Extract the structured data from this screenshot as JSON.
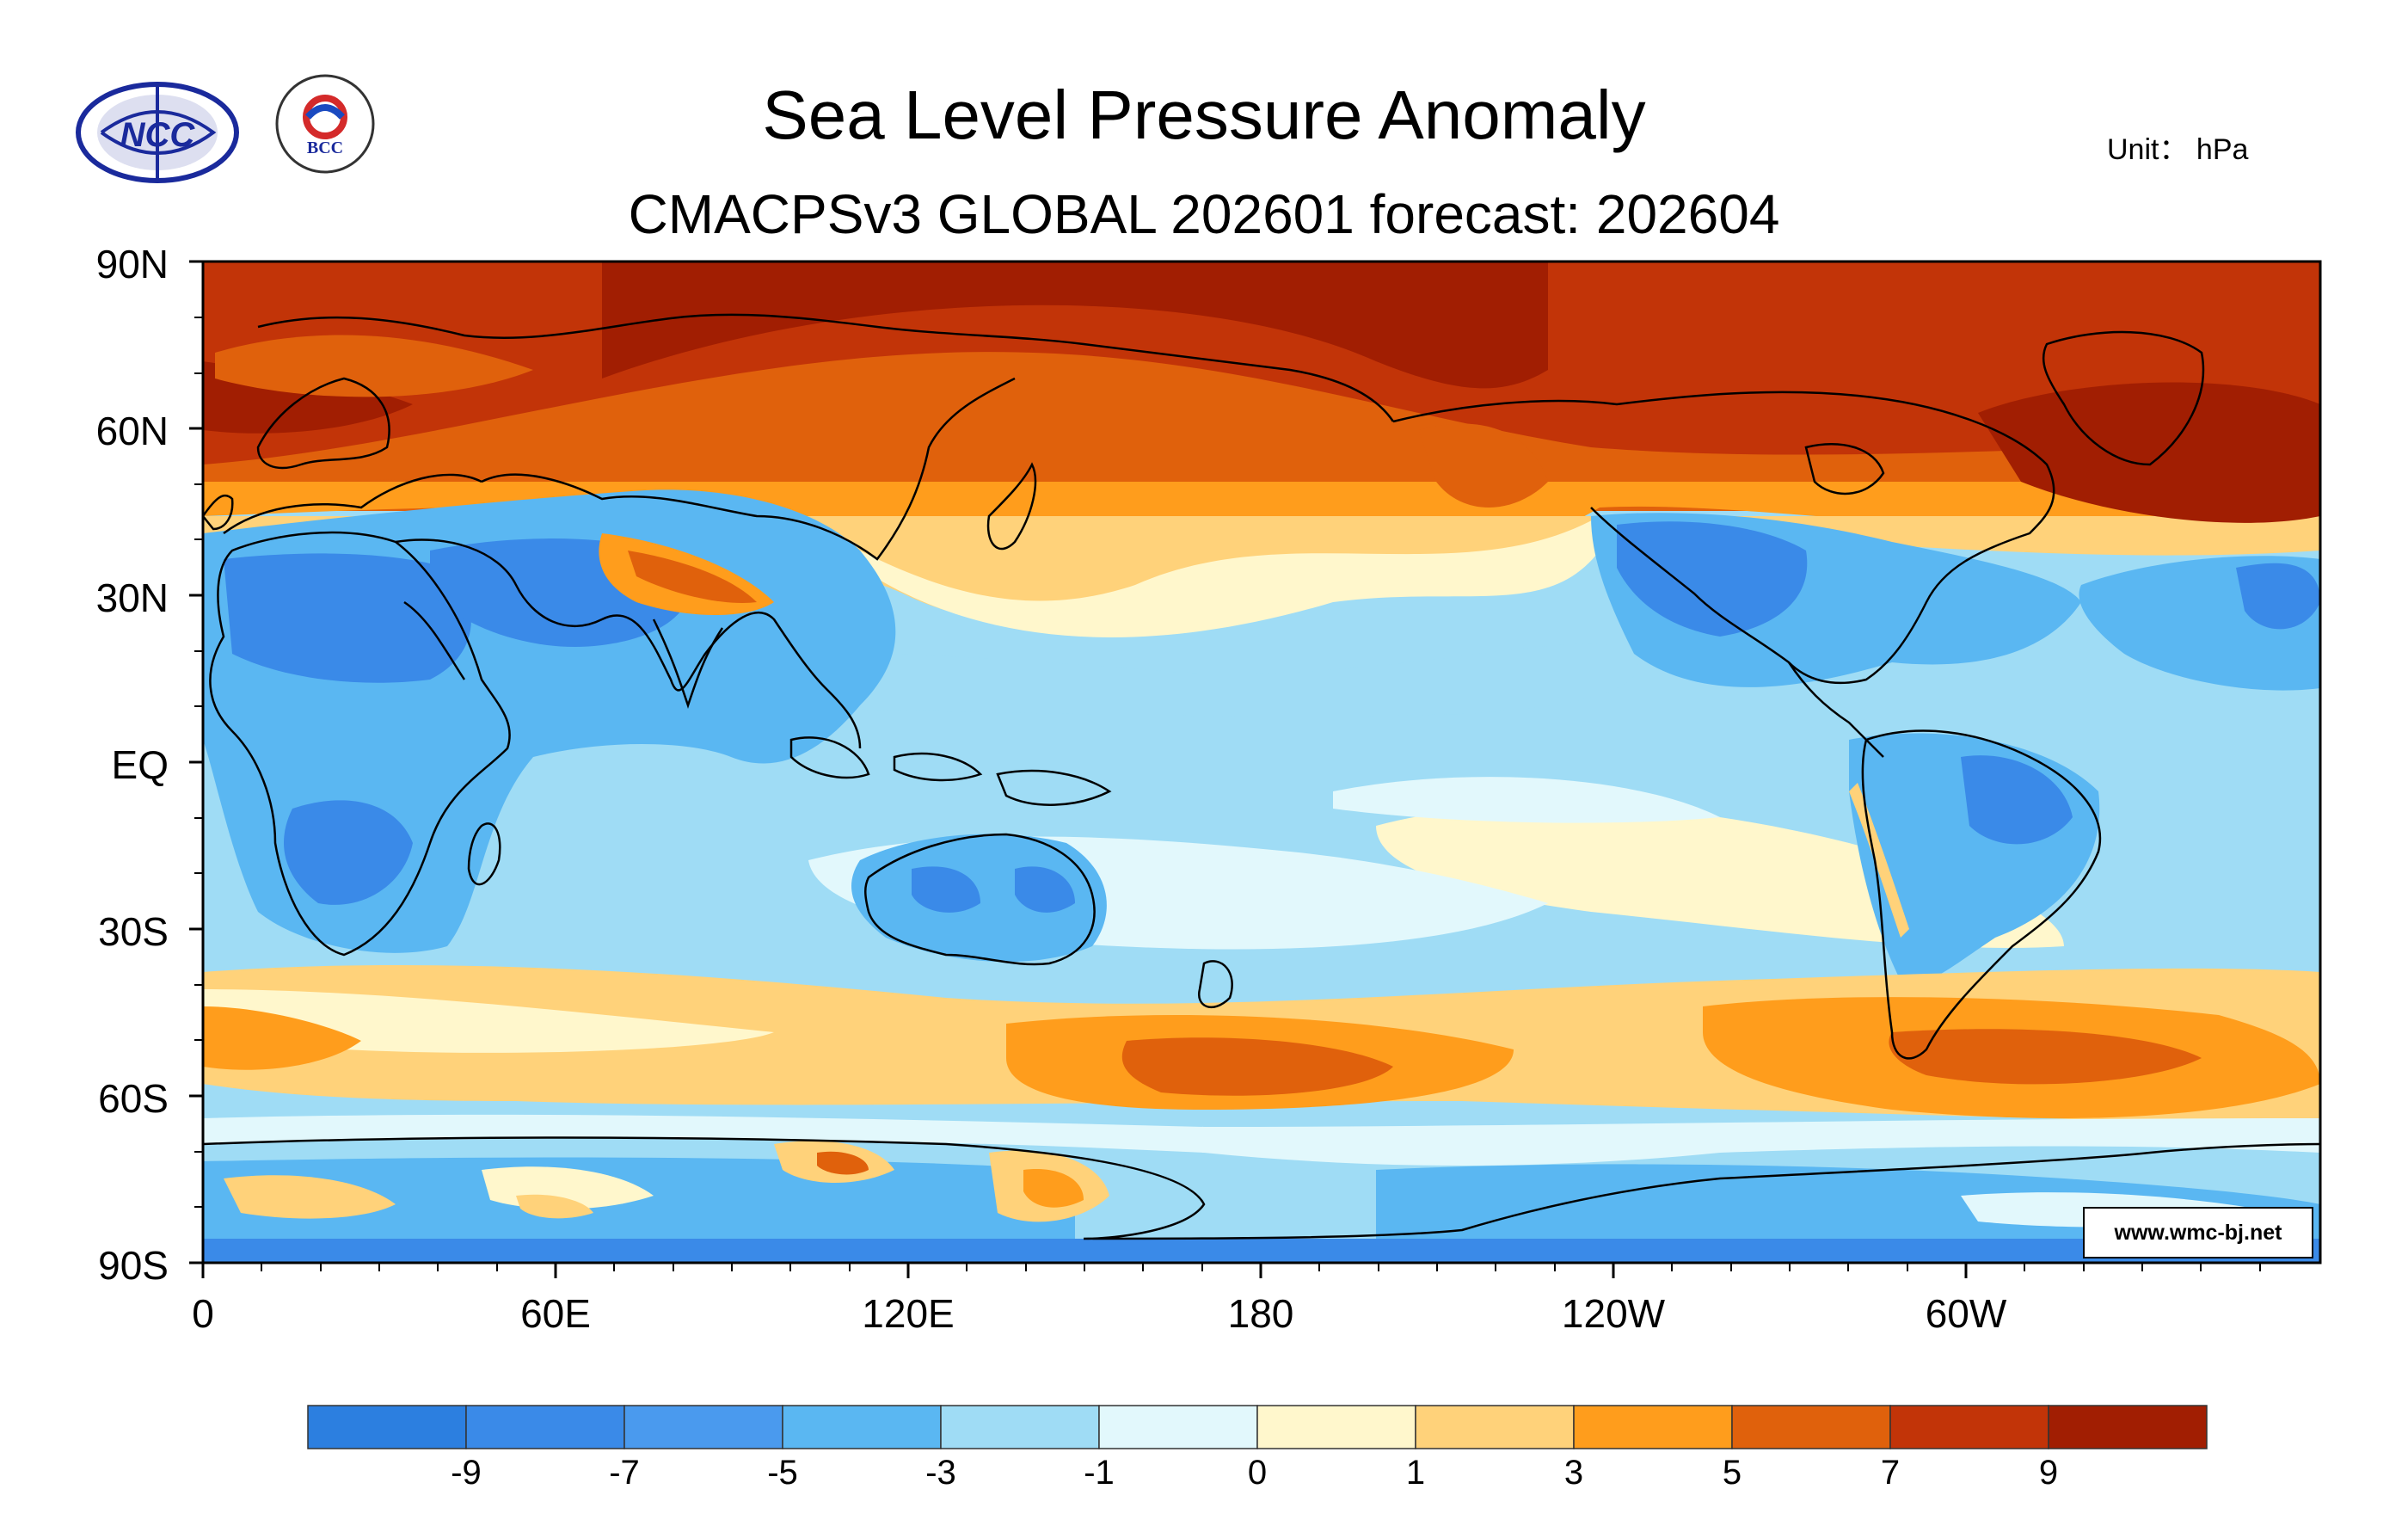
{
  "header": {
    "title": "Sea Level Pressure Anomaly",
    "subtitle": "CMACPSv3 GLOBAL 202601 forecast: 202604",
    "unit": "Unit： hPa"
  },
  "logos": [
    {
      "name": "ncc-logo",
      "text": "NCC"
    },
    {
      "name": "bcc-logo",
      "text": "BCC"
    }
  ],
  "map": {
    "lat_labels": [
      "90N",
      "60N",
      "30N",
      "EQ",
      "30S",
      "60S",
      "90S"
    ],
    "lon_labels": [
      "0",
      "60E",
      "120E",
      "180",
      "120W",
      "60W"
    ],
    "credit": "www.wmc-bj.net"
  },
  "legend": {
    "colors": [
      "#2c7fe0",
      "#3a8ae8",
      "#4a9aee",
      "#5ab7f2",
      "#9fdcf5",
      "#e2f8fc",
      "#fff7cc",
      "#ffd27a",
      "#ff9d1c",
      "#e0610c",
      "#c23408",
      "#a11e02"
    ],
    "labels": [
      "-9",
      "-7",
      "-5",
      "-3",
      "-1",
      "0",
      "1",
      "3",
      "5",
      "7",
      "9"
    ]
  },
  "colors": {
    "strong_high": "#a11e02",
    "high": "#c23408",
    "mid_high": "#e0610c",
    "mod_high": "#ff9d1c",
    "low_high": "#ffd27a",
    "neutral_pos": "#fff7cc",
    "neutral_neg": "#e2f8fc",
    "low_neg": "#9fdcf5",
    "mod_neg": "#5ab7f2",
    "strong_neg": "#3a8ae8"
  }
}
